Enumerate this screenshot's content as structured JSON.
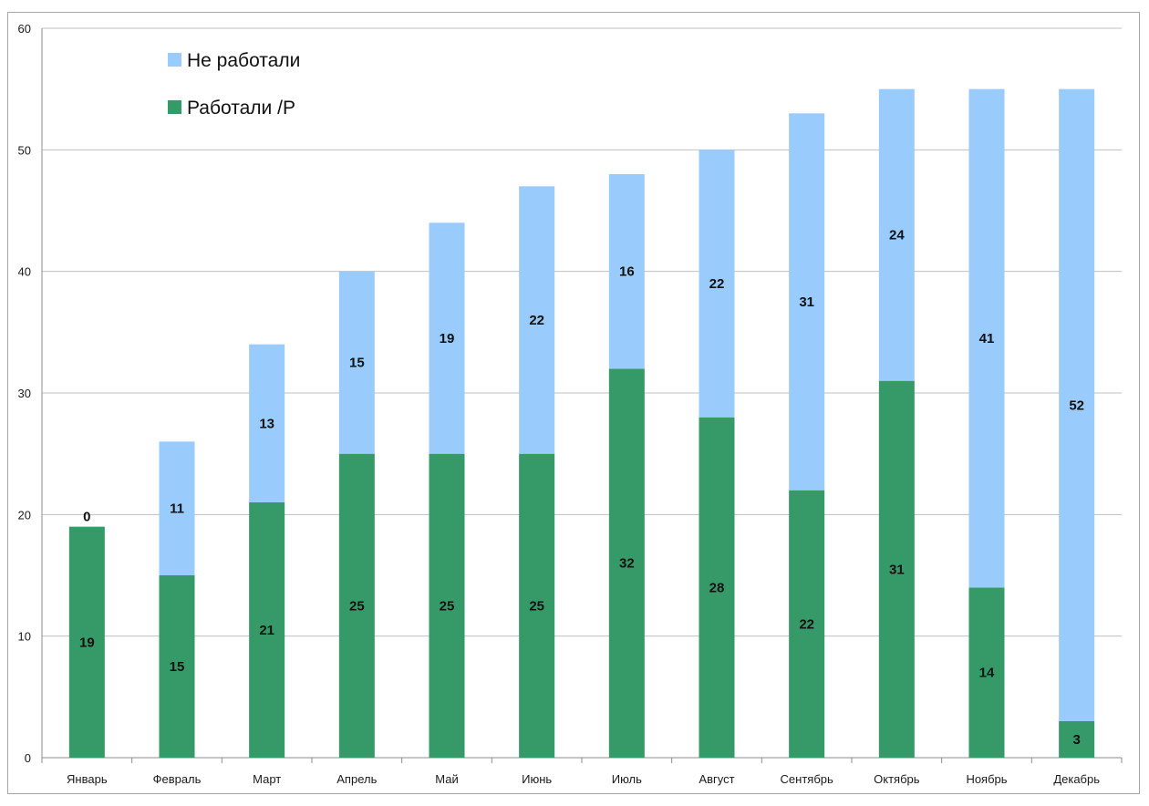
{
  "chart_data": {
    "type": "bar",
    "stacked": true,
    "categories": [
      "Январь",
      "Февраль",
      "Март",
      "Апрель",
      "Май",
      "Июнь",
      "Июль",
      "Август",
      "Сентябрь",
      "Октябрь",
      "Ноябрь",
      "Декабрь"
    ],
    "series": [
      {
        "name": "Работали /Р",
        "color": "#359a68",
        "values": [
          19,
          15,
          21,
          25,
          25,
          25,
          32,
          28,
          22,
          31,
          14,
          3
        ]
      },
      {
        "name": "Не работали",
        "color": "#99ccfc",
        "values": [
          0,
          11,
          13,
          15,
          19,
          22,
          16,
          22,
          31,
          24,
          41,
          52
        ]
      }
    ],
    "ylim": [
      0,
      60
    ],
    "yticks": [
      0,
      10,
      20,
      30,
      40,
      50,
      60
    ],
    "grid": true,
    "legend_position": "top-left",
    "title": "",
    "xlabel": "",
    "ylabel": ""
  }
}
